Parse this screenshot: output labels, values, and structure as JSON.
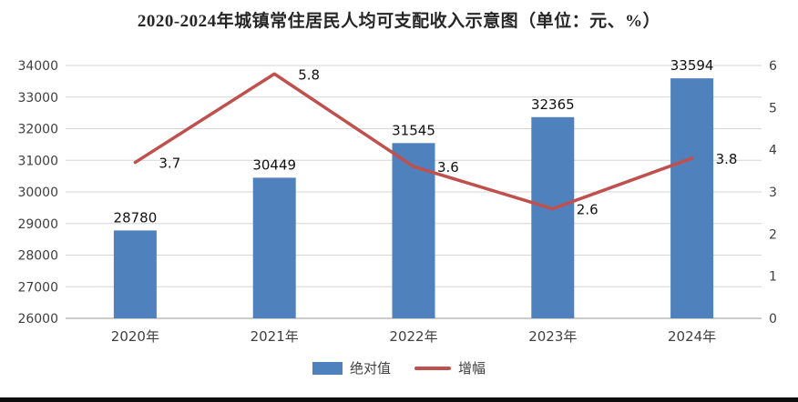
{
  "title": "2020-2024年城镇常住居民人均可支配收入示意图（单位：元、%）",
  "chart_data": {
    "type": "bar+line combo",
    "title": "2020-2024年城镇常住居民人均可支配收入示意图（单位：元、%）",
    "categories": [
      "2020年",
      "2021年",
      "2022年",
      "2023年",
      "2024年"
    ],
    "series": [
      {
        "name": "绝对值",
        "type": "bar",
        "axis": "left",
        "color": "#4f81bd",
        "values": [
          28780,
          30449,
          31545,
          32365,
          33594
        ]
      },
      {
        "name": "增幅",
        "type": "line",
        "axis": "right",
        "color": "#c0504d",
        "values": [
          3.7,
          5.8,
          3.6,
          2.6,
          3.8
        ]
      }
    ],
    "left_axis": {
      "min": 26000,
      "max": 34000,
      "step": 1000,
      "ticks": [
        26000,
        27000,
        28000,
        29000,
        30000,
        31000,
        32000,
        33000,
        34000
      ]
    },
    "right_axis": {
      "min": 0,
      "max": 6,
      "step": 1,
      "ticks": [
        0,
        1,
        2,
        3,
        4,
        5,
        6
      ]
    },
    "grid": true,
    "legend_position": "bottom",
    "colors": {
      "bar": "#4f81bd",
      "line": "#c0504d",
      "gridline": "#d6d6d6",
      "axis_line": "#9a9a9a",
      "text": "#404040"
    }
  }
}
